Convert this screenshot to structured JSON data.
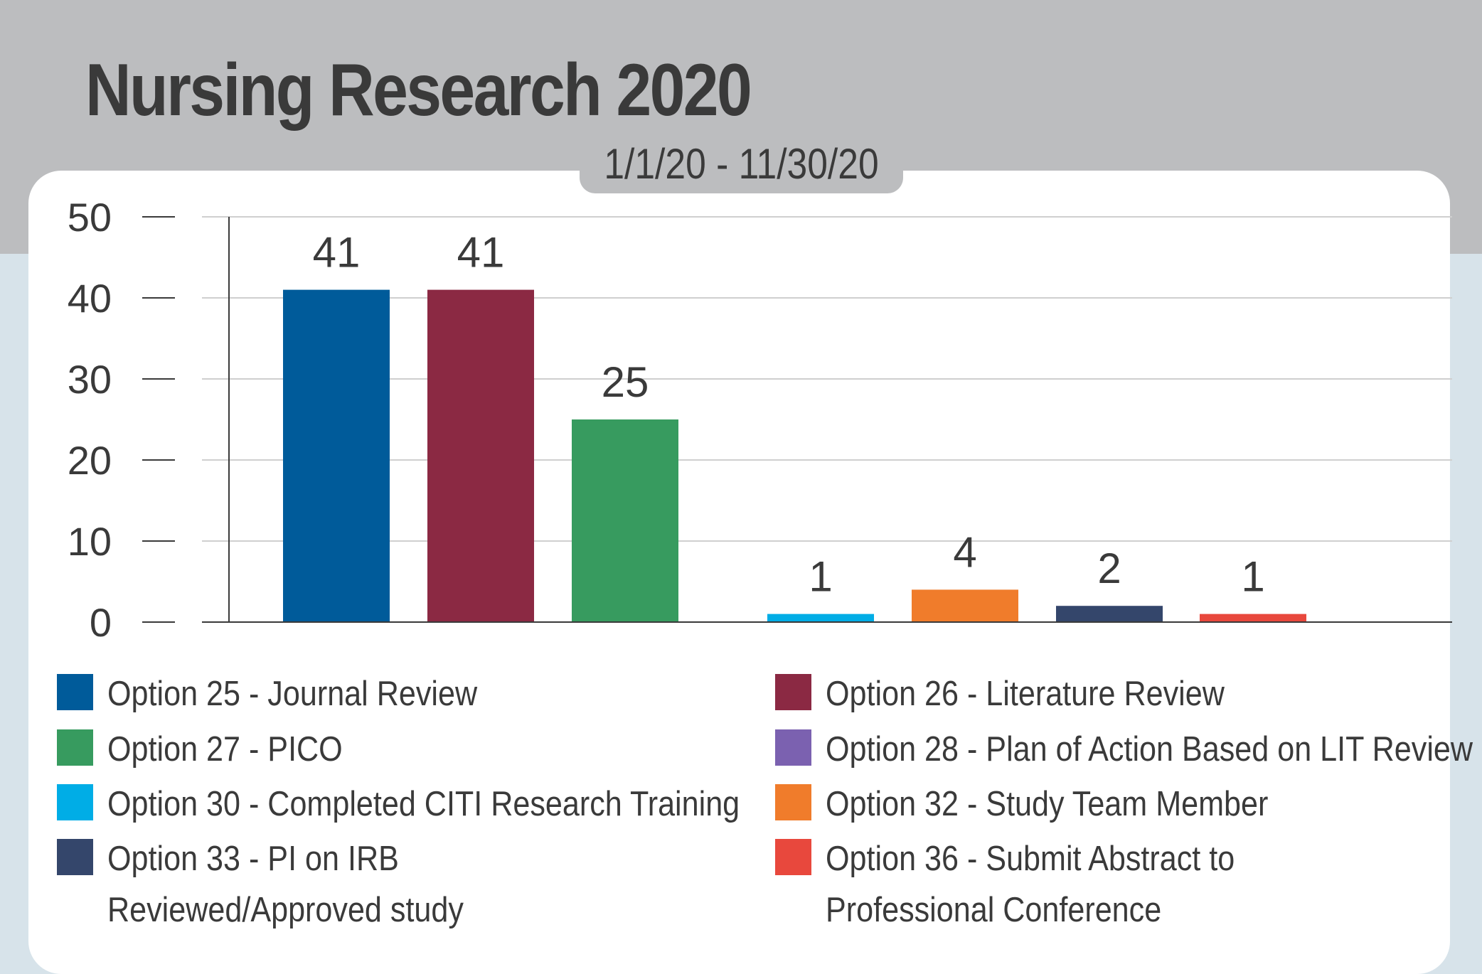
{
  "header": {
    "title": "Nursing Research 2020",
    "date_range": "1/1/20 - 11/30/20"
  },
  "colors": {
    "background": "#d7e3ea",
    "band": "#bcbdbf",
    "text": "#3a3a3a"
  },
  "chart_data": {
    "type": "bar",
    "title": "Nursing Research 2020",
    "subtitle": "1/1/20 - 11/30/20",
    "xlabel": "",
    "ylabel": "",
    "ylim": [
      0,
      50
    ],
    "yticks": [
      "0",
      "10",
      "20",
      "30",
      "40",
      "50"
    ],
    "grid": true,
    "legend_position": "bottom",
    "categories": [
      "Option 25 - Journal Review",
      "Option 26 - Literature Review",
      "Option 27 - PICO",
      "Option 28 - Plan of Action Based on LIT Review",
      "Option 30 - Completed CITI Research Training",
      "Option 32 - Study Team Member",
      "Option 33 - PI on IRB Reviewed/Approved study",
      "Option 36 - Submit Abstract to Professional Conference"
    ],
    "values": [
      41,
      41,
      25,
      0,
      1,
      4,
      2,
      1
    ],
    "data_labels": [
      "41",
      "41",
      "25",
      "",
      "1",
      "4",
      "2",
      "1"
    ],
    "colors": [
      "#005b9a",
      "#8b2943",
      "#379b5f",
      "#7b61b0",
      "#00ade6",
      "#f07c2b",
      "#34466b",
      "#e8483d"
    ]
  },
  "legend": {
    "items": [
      {
        "line1": "Option 25 - Journal Review",
        "line2": "",
        "color": "#005b9a"
      },
      {
        "line1": "Option 26 - Literature Review",
        "line2": "",
        "color": "#8b2943"
      },
      {
        "line1": "Option 27 - PICO",
        "line2": "",
        "color": "#379b5f"
      },
      {
        "line1": "Option 28 - Plan of Action Based on LIT Review",
        "line2": "",
        "color": "#7b61b0"
      },
      {
        "line1": "Option 30 - Completed CITI Research Training",
        "line2": "",
        "color": "#00ade6"
      },
      {
        "line1": "Option 32 - Study Team Member",
        "line2": "",
        "color": "#f07c2b"
      },
      {
        "line1": "Option 33 - PI on IRB",
        "line2": "Reviewed/Approved study",
        "color": "#34466b"
      },
      {
        "line1": "Option 36 - Submit Abstract to",
        "line2": "Professional Conference",
        "color": "#e8483d"
      }
    ]
  }
}
